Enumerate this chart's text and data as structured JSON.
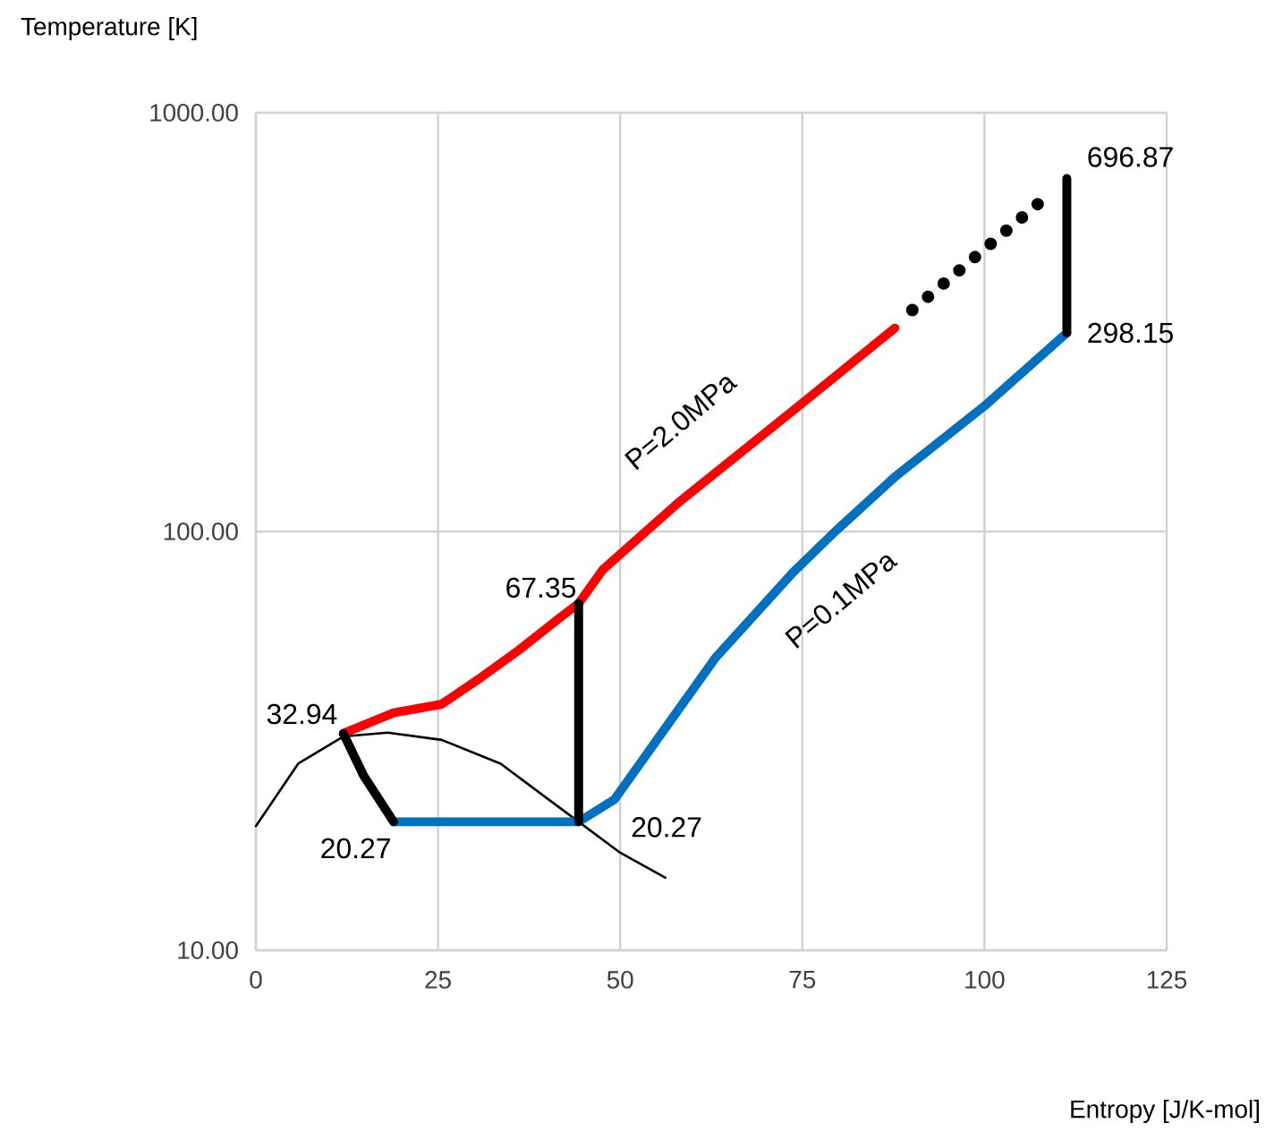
{
  "chart_data": {
    "type": "line",
    "xlabel": "Entropy [J/K-mol]",
    "ylabel": "Temperature [K]",
    "xlim": [
      0,
      125
    ],
    "xticks": [
      0,
      25,
      50,
      75,
      100,
      125
    ],
    "ylim": [
      10,
      1000
    ],
    "yticks": [
      {
        "value": 10,
        "label": "10.00"
      },
      {
        "value": 100,
        "label": "100.00"
      },
      {
        "value": 1000,
        "label": "1000.00"
      }
    ],
    "log": "y",
    "grid": true,
    "series": [
      {
        "color": "#000000",
        "x": [
          0,
          5.8,
          12,
          18.1,
          25.5,
          33.6,
          40.2,
          44.3,
          50,
          56.2
        ],
        "values": [
          19.8,
          27.9,
          32.4,
          33.1,
          31.8,
          27.9,
          22.9,
          20.27,
          17.1,
          14.9
        ]
      },
      {
        "color": "#ff0000",
        "x": [
          12,
          18.9,
          25.5,
          30.4,
          36.1,
          41.8,
          44.3,
          47.6,
          58.2,
          74.6,
          87.7
        ],
        "values": [
          32.94,
          36.9,
          38.7,
          44.2,
          52.1,
          62.4,
          67.35,
          81,
          118,
          200,
          306
        ]
      },
      {
        "color": "#0070c0",
        "x": [
          18.9,
          44.3,
          49.2,
          63.1,
          73.7,
          79.5,
          87.7,
          100,
          111.3
        ],
        "values": [
          20.27,
          20.27,
          22.9,
          50,
          79.8,
          100,
          135,
          199.5,
          298.15
        ]
      },
      {
        "color": "#000000",
        "x": [
          12,
          14.8,
          18.9
        ],
        "values": [
          32.94,
          26.1,
          20.27
        ]
      },
      {
        "color": "#000000",
        "x": [
          44.3,
          44.3
        ],
        "values": [
          20.27,
          67.35
        ]
      },
      {
        "color": "#000000",
        "line_style": "dotted",
        "x": [
          90.1,
          108.5
        ],
        "values": [
          338,
          630
        ]
      },
      {
        "color": "#000000",
        "x": [
          111.3,
          111.3
        ],
        "values": [
          298.15,
          696.87
        ]
      }
    ],
    "annotations": [
      {
        "text": "32.94",
        "x": 12,
        "y": 32.94
      },
      {
        "text": "20.27",
        "x": 18.9,
        "y": 20.27
      },
      {
        "text": "67.35",
        "x": 44.3,
        "y": 67.35
      },
      {
        "text": "20.27",
        "x": 44.3,
        "y": 20.27
      },
      {
        "text": "696.87",
        "x": 111.3,
        "y": 696.87
      },
      {
        "text": "298.15",
        "x": 111.3,
        "y": 298.15
      },
      "P=2.0MPa",
      "P=0.1MPa"
    ]
  }
}
